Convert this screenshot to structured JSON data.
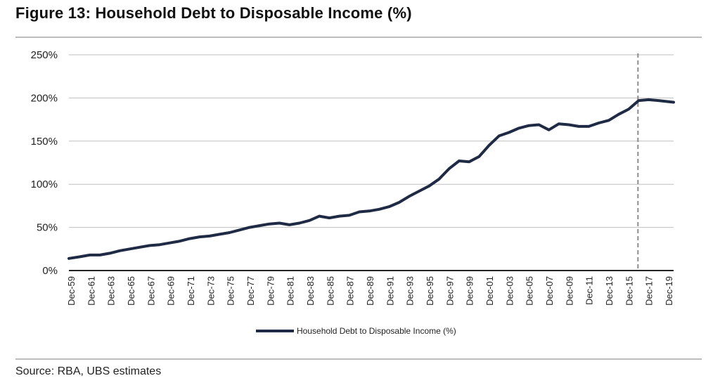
{
  "header": {
    "title": "Figure 13: Household Debt to Disposable Income (%)"
  },
  "footer": {
    "source": "Source:  RBA, UBS estimates"
  },
  "colors": {
    "series": "#1f2b45",
    "grid": "#bfbfbf",
    "forecast_line": "#8c8c8c",
    "axis": "#222222"
  },
  "chart_data": {
    "type": "line",
    "title": "Figure 13: Household Debt to Disposable Income (%)",
    "xlabel": "",
    "ylabel": "",
    "ylim": [
      0,
      250
    ],
    "yticks": [
      "0%",
      "50%",
      "100%",
      "150%",
      "200%",
      "250%"
    ],
    "xticks": [
      "Dec-59",
      "Dec-61",
      "Dec-63",
      "Dec-65",
      "Dec-67",
      "Dec-69",
      "Dec-71",
      "Dec-73",
      "Dec-75",
      "Dec-77",
      "Dec-79",
      "Dec-81",
      "Dec-83",
      "Dec-85",
      "Dec-87",
      "Dec-89",
      "Dec-91",
      "Dec-93",
      "Dec-95",
      "Dec-97",
      "Dec-99",
      "Dec-01",
      "Dec-03",
      "Dec-05",
      "Dec-07",
      "Dec-09",
      "Dec-11",
      "Dec-13",
      "Dec-15",
      "Dec-17",
      "Dec-19"
    ],
    "xlim": [
      1959.9,
      2020.5
    ],
    "grid": true,
    "legend": "bottom-center",
    "forecast_marker_year": 2017.0,
    "series": [
      {
        "name": "Household Debt to Disposable Income (%)",
        "x": [
          1959.9,
          1961,
          1962,
          1963,
          1964,
          1965,
          1966,
          1967,
          1968,
          1969,
          1970,
          1971,
          1972,
          1973,
          1974,
          1975,
          1976,
          1977,
          1978,
          1979,
          1980,
          1981,
          1982,
          1983,
          1984,
          1985,
          1986,
          1987,
          1988,
          1989,
          1990,
          1991,
          1992,
          1993,
          1994,
          1995,
          1996,
          1997,
          1998,
          1999,
          2000,
          2001,
          2002,
          2003,
          2004,
          2005,
          2006,
          2007,
          2008,
          2009,
          2010,
          2011,
          2012,
          2013,
          2014,
          2015,
          2016,
          2017,
          2018,
          2019,
          2020.5
        ],
        "values": [
          14,
          16,
          18,
          18,
          20,
          23,
          25,
          27,
          29,
          30,
          32,
          34,
          37,
          39,
          40,
          42,
          44,
          47,
          50,
          52,
          54,
          55,
          53,
          55,
          58,
          63,
          61,
          63,
          64,
          68,
          69,
          71,
          74,
          79,
          86,
          92,
          98,
          106,
          118,
          127,
          126,
          132,
          145,
          156,
          160,
          165,
          168,
          169,
          163,
          170,
          169,
          167,
          167,
          171,
          174,
          181,
          187,
          197,
          198,
          197,
          195
        ]
      }
    ]
  }
}
